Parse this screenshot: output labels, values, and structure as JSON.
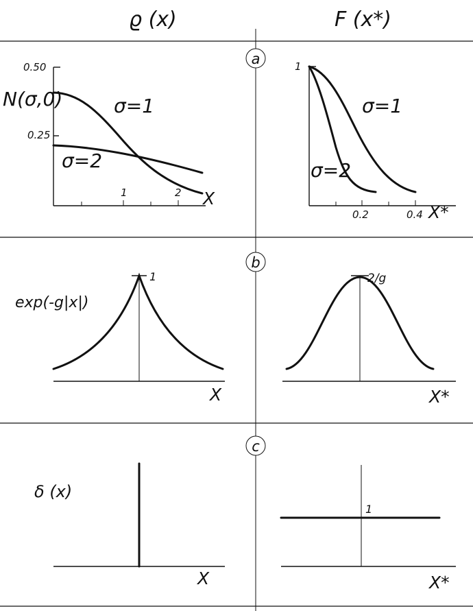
{
  "headers": {
    "left": "ϱ (x)",
    "right": "F (x*)"
  },
  "panels": {
    "a": {
      "letter": "a",
      "left": {
        "ylabel": "N(σ,0)",
        "yticks": [
          "0.50",
          "0.25"
        ],
        "xticks": [
          "1",
          "2"
        ],
        "xlabel": "X",
        "curves": [
          "σ=1",
          "σ=2"
        ]
      },
      "right": {
        "yticks": [
          "1"
        ],
        "xticks": [
          "0.2",
          "0.4"
        ],
        "xlabel": "X*",
        "curves": [
          "σ=1",
          "σ=2"
        ]
      }
    },
    "b": {
      "letter": "b",
      "left": {
        "ylabel": "exp(-g|x|)",
        "peak": "1",
        "xlabel": "X"
      },
      "right": {
        "peak": "2/g",
        "xlabel": "X*"
      }
    },
    "c": {
      "letter": "c",
      "left": {
        "ylabel": "δ (x)",
        "xlabel": "X"
      },
      "right": {
        "level": "1",
        "xlabel": "X*"
      }
    }
  }
}
